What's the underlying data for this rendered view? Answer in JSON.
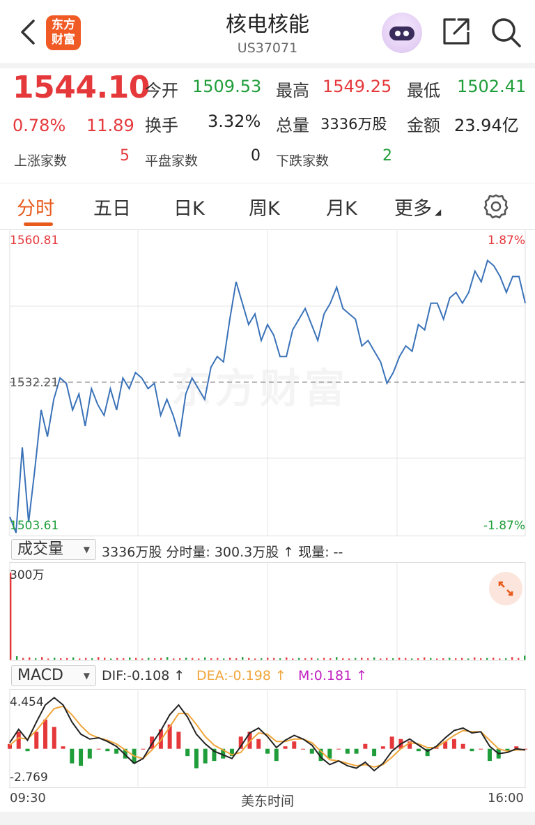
{
  "header": {
    "logo_line1": "东方",
    "logo_line2": "财富",
    "title": "核电核能",
    "code": "US37071"
  },
  "quote": {
    "price": "1544.10",
    "change_pct": "0.78%",
    "change": "11.89",
    "open_label": "今开",
    "open": "1509.53",
    "high_label": "最高",
    "high": "1549.25",
    "low_label": "最低",
    "low": "1502.41",
    "turnover_label": "换手",
    "turnover": "3.32%",
    "volume_label": "总量",
    "volume": "3336万股",
    "amount_label": "金额",
    "amount": "23.94亿",
    "up_label": "上涨家数",
    "up": "5",
    "flat_label": "平盘家数",
    "flat": "0",
    "down_label": "下跌家数",
    "down": "2"
  },
  "tabs": [
    "分时",
    "五日",
    "日K",
    "周K",
    "月K",
    "更多"
  ],
  "active_tab": "分时",
  "watermark": "东方财富",
  "volume_panel": {
    "selector": "成交量",
    "info": "3336万股 分时量: 300.3万股 ↑ 现量: --"
  },
  "macd_panel": {
    "selector": "MACD",
    "dif": "DIF:-0.108 ↑",
    "dea": "DEA:-0.198 ↑",
    "m": "M:0.181 ↑"
  },
  "colors": {
    "up": "#e5383b",
    "down": "#1f9d3a",
    "line": "#3a72b8",
    "dea": "#f0a53a",
    "m": "#c020c0",
    "accent": "#e85a1c"
  },
  "chart_data": [
    {
      "type": "line",
      "title": "",
      "y_max_label": "1560.81",
      "y_min_label": "1503.61",
      "y_mid_label": "1532.21",
      "pct_max_label": "1.87%",
      "pct_min_label": "-1.87%",
      "ylim": [
        1503.61,
        1560.81
      ],
      "prev_close": 1532.21,
      "x_start": "09:30",
      "x_end": "16:00",
      "x_label": "美东时间",
      "series": [
        {
          "values": [
            1507,
            1504,
            1520,
            1506,
            1516,
            1527,
            1522,
            1529,
            1533,
            1532,
            1527,
            1530,
            1524,
            1531,
            1528,
            1526,
            1531,
            1527,
            1533,
            1531,
            1534,
            1533,
            1531,
            1532,
            1526,
            1529,
            1526,
            1522,
            1530,
            1533,
            1531,
            1529,
            1535,
            1537,
            1536,
            1544,
            1551,
            1547,
            1543,
            1545,
            1540,
            1543,
            1541,
            1537,
            1537,
            1542,
            1544,
            1546,
            1543,
            1540,
            1545,
            1547,
            1550,
            1546,
            1545,
            1544,
            1539,
            1540,
            1538,
            1536,
            1532,
            1534,
            1537,
            1539,
            1538,
            1543,
            1542,
            1547,
            1547,
            1544,
            1548,
            1549,
            1547,
            1549,
            1553,
            1551,
            1555,
            1554,
            1552,
            1549,
            1552,
            1552,
            1547
          ]
        }
      ]
    },
    {
      "type": "bar",
      "title": "",
      "y_max_label": "300万",
      "volumes": [
        300,
        12,
        6,
        8,
        5,
        9,
        4,
        7,
        5,
        6,
        8,
        4,
        6,
        5,
        9,
        7,
        4,
        6,
        5,
        8,
        6,
        4,
        7,
        5,
        6,
        9,
        4,
        5,
        7,
        6,
        4,
        8,
        5,
        6,
        4,
        7,
        5,
        9,
        6,
        4,
        5,
        7,
        6,
        5,
        8,
        4,
        6,
        5,
        7,
        4,
        6,
        5,
        9,
        5,
        4,
        6,
        7,
        5,
        8,
        4,
        6,
        5,
        7,
        6,
        4,
        5,
        8,
        6,
        4,
        5,
        7,
        5,
        6,
        4,
        8,
        5,
        6,
        7,
        4,
        5,
        9,
        6,
        14
      ]
    },
    {
      "type": "line",
      "title": "",
      "y_max_label": "4.454",
      "y_min_label": "-2.769",
      "ylim": [
        -2.769,
        4.454
      ],
      "dif": [
        0.5,
        1.6,
        0.7,
        2.2,
        3.6,
        4.2,
        3.6,
        2.2,
        1.2,
        0.8,
        0.9,
        0.6,
        0.2,
        -0.5,
        -1.2,
        -0.8,
        0.4,
        1.5,
        2.8,
        3.6,
        2.6,
        1.2,
        0.4,
        -0.2,
        -0.5,
        -0.8,
        0.2,
        1.3,
        1.7,
        1.0,
        0.1,
        0.7,
        1.1,
        0.8,
        0.3,
        -0.7,
        -1.3,
        -1.0,
        -1.4,
        -1.6,
        -1.1,
        -1.8,
        -1.2,
        -0.2,
        0.4,
        0.8,
        0.3,
        -0.2,
        0.2,
        0.9,
        1.5,
        1.7,
        1.3,
        1.4,
        0.2,
        -0.4,
        -0.3,
        0.0,
        -0.1
      ],
      "dea": [
        0.3,
        0.9,
        0.8,
        1.5,
        2.4,
        3.3,
        3.5,
        2.8,
        1.9,
        1.2,
        0.9,
        0.7,
        0.4,
        -0.1,
        -0.6,
        -0.8,
        -0.1,
        0.7,
        1.8,
        2.9,
        2.9,
        2.0,
        1.0,
        0.3,
        -0.1,
        -0.5,
        -0.3,
        0.6,
        1.3,
        1.2,
        0.6,
        0.6,
        0.8,
        0.8,
        0.5,
        -0.2,
        -0.9,
        -1.0,
        -1.2,
        -1.4,
        -1.3,
        -1.5,
        -1.3,
        -0.7,
        0.0,
        0.5,
        0.4,
        0.1,
        0.1,
        0.6,
        1.1,
        1.5,
        1.4,
        1.4,
        0.7,
        0.0,
        -0.2,
        -0.1,
        -0.1
      ]
    }
  ]
}
